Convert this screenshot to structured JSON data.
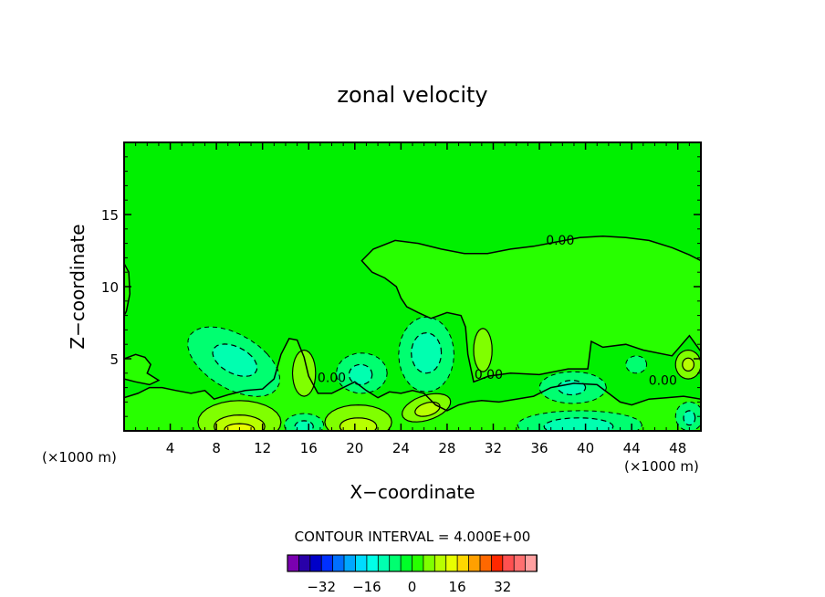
{
  "chart_data": {
    "type": "contour",
    "title": "zonal velocity",
    "xlabel": "X−coordinate",
    "ylabel": "Z−coordinate",
    "x_unit_left": "(×1000 m)",
    "x_unit_right": "(×1000 m)",
    "xlim": [
      0,
      50
    ],
    "ylim": [
      0,
      20
    ],
    "x_ticks": [
      4,
      8,
      12,
      16,
      20,
      24,
      28,
      32,
      36,
      40,
      44,
      48
    ],
    "y_ticks": [
      5,
      10,
      15
    ],
    "contour_interval_label": "CONTOUR INTERVAL = 4.000E+00",
    "contour_labels": [
      {
        "text": "0.00",
        "x": 37.8,
        "y": 12.9
      },
      {
        "text": "0.00",
        "x": 31.6,
        "y": 3.6
      },
      {
        "text": "0.00",
        "x": 18.0,
        "y": 3.4
      },
      {
        "text": "0.00",
        "x": 46.7,
        "y": 3.2
      }
    ],
    "colorbar": {
      "levels": [
        -40,
        -36,
        -32,
        -28,
        -24,
        -20,
        -16,
        -12,
        -8,
        -4,
        0,
        4,
        8,
        12,
        16,
        20,
        24,
        28,
        32,
        36,
        40
      ],
      "colors": [
        "#7a00b0",
        "#2800a8",
        "#0000c8",
        "#0030ff",
        "#0070ff",
        "#00a8ff",
        "#00dcff",
        "#00ffe8",
        "#00ffb0",
        "#00ff70",
        "#00ff28",
        "#28ff00",
        "#80ff00",
        "#b8ff00",
        "#e8ff00",
        "#ffd800",
        "#ffa000",
        "#ff6800",
        "#ff2800",
        "#ff5050",
        "#ff7070",
        "#ffa0a0"
      ],
      "tick_values": [
        -32,
        -16,
        0,
        16,
        32
      ],
      "tick_labels": [
        "−32",
        "−16",
        "0",
        "16",
        "32"
      ]
    },
    "fill_colors": {
      "background": "#00f000",
      "zero_positive": "#28ff00",
      "light_positive": "#80ff00",
      "mid_positive": "#b8ff00",
      "high_positive": "#e8ff00",
      "neg_light": "#00ff70",
      "neg_mid": "#00ffb0",
      "neg_strong": "#00ffe8"
    }
  }
}
